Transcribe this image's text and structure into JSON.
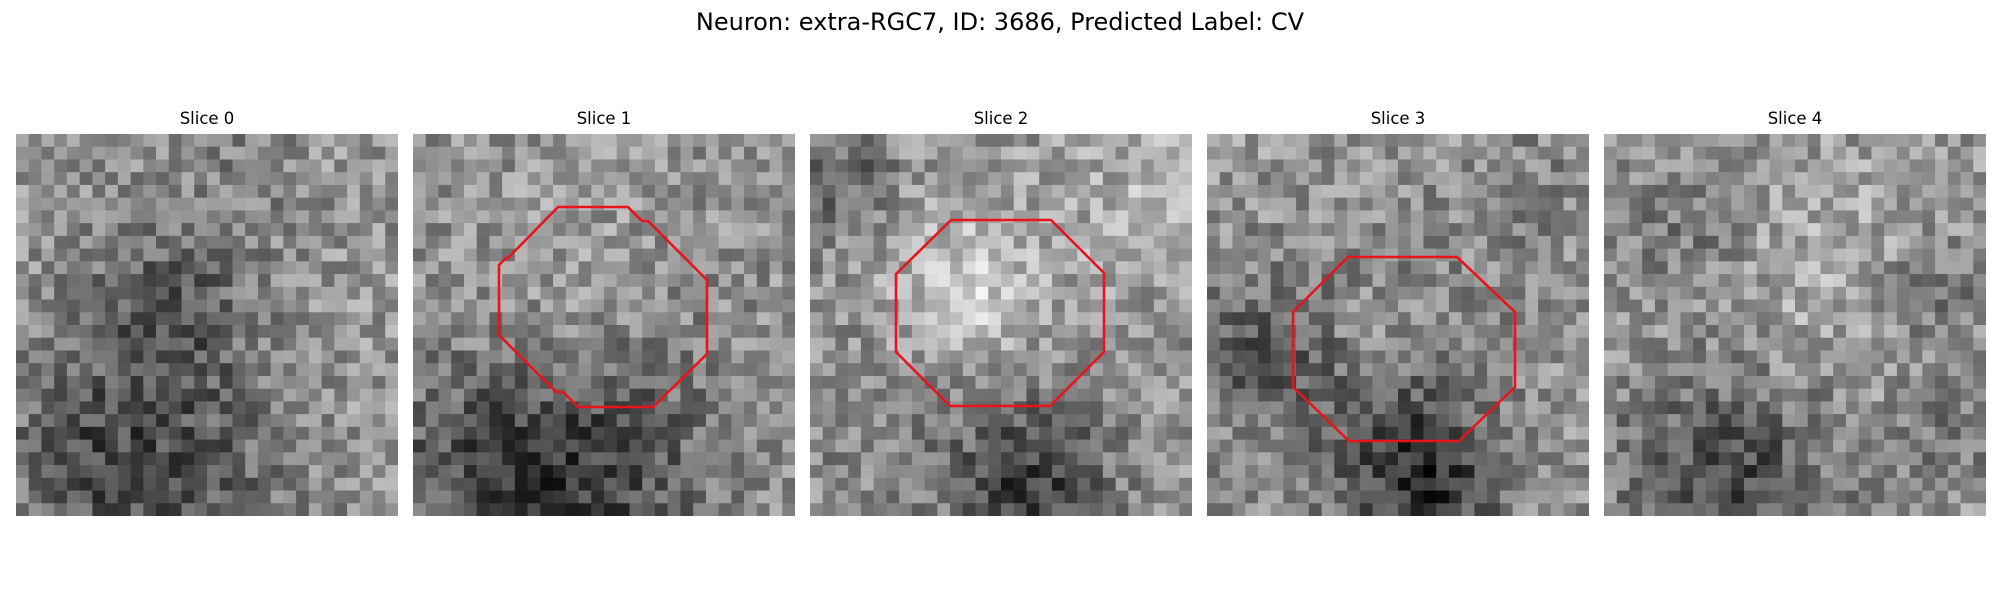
{
  "figure": {
    "title": "Neuron: extra-RGC7, ID: 3686, Predicted Label: CV"
  },
  "slices": [
    {
      "title": "Slice 0",
      "has_roi": false
    },
    {
      "title": "Slice 1",
      "has_roi": true
    },
    {
      "title": "Slice 2",
      "has_roi": true
    },
    {
      "title": "Slice 3",
      "has_roi": true
    },
    {
      "title": "Slice 4",
      "has_roi": false
    }
  ],
  "colors": {
    "roi_outline": "#e8141a",
    "background": "#ffffff"
  }
}
